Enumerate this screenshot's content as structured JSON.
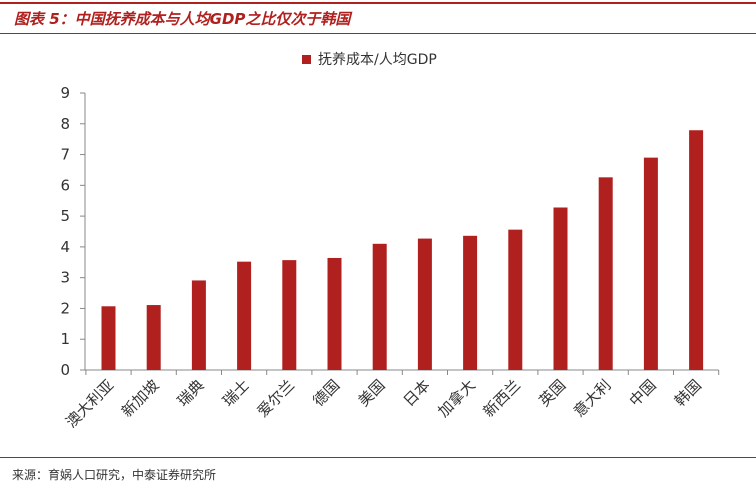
{
  "figure": {
    "title": "图表 5：中国抚养成本与人均GDP之比仅次于韩国",
    "source": "来源：育娲人口研究，中泰证券研究所"
  },
  "colors": {
    "accent": "#b0201e",
    "bar": "#b0201e",
    "axis": "#888888",
    "text": "#333333"
  },
  "chart_data": {
    "type": "bar",
    "categories": [
      "澳大利亚",
      "新加坡",
      "瑞典",
      "瑞士",
      "爱尔兰",
      "德国",
      "美国",
      "日本",
      "加拿大",
      "新西兰",
      "英国",
      "意大利",
      "中国",
      "韩国"
    ],
    "series": [
      {
        "name": "抚养成本/人均GDP",
        "values": [
          2.07,
          2.11,
          2.91,
          3.52,
          3.57,
          3.64,
          4.1,
          4.27,
          4.36,
          4.56,
          5.28,
          6.26,
          6.9,
          7.79
        ]
      }
    ],
    "yticks": [
      0,
      1,
      2,
      3,
      4,
      5,
      6,
      7,
      8,
      9
    ],
    "ylim": [
      0,
      9
    ],
    "grid": false,
    "legend_position": "top-center"
  }
}
